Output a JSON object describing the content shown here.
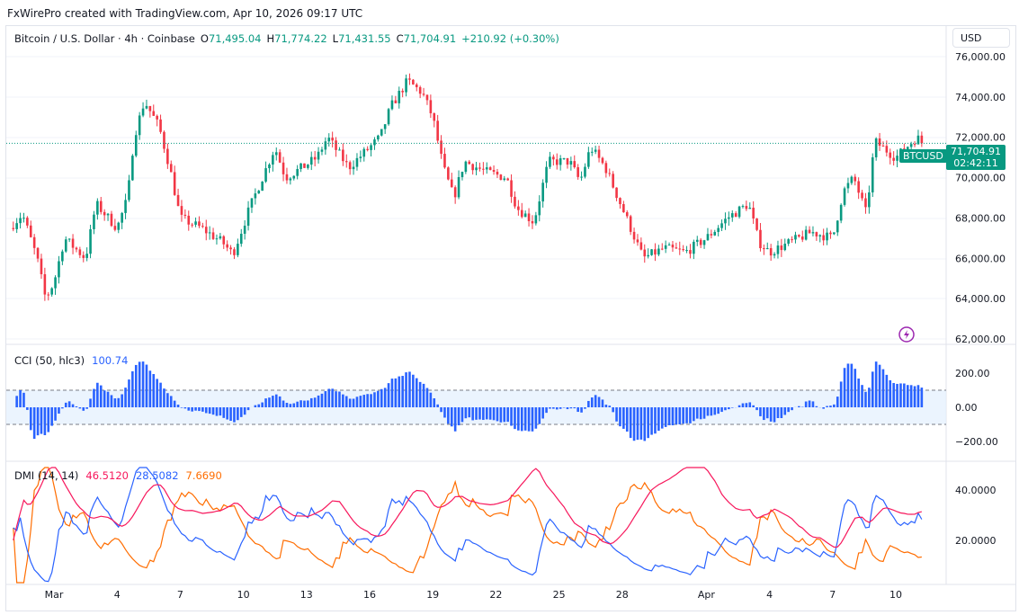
{
  "credit": "FxWirePro created with TradingView.com, Apr 10, 2026 09:17 UTC",
  "symbol": {
    "name": "Bitcoin / U.S. Dollar · 4h · Coinbase",
    "open": "O",
    "open_v": "71,495.04",
    "high": "H",
    "high_v": "71,774.22",
    "low": "L",
    "low_v": "71,431.55",
    "close": "C",
    "close_v": "71,704.91",
    "change": "+210.92 (+0.30%)"
  },
  "currency": "USD",
  "price_tag": {
    "symbol": "BTCUSD",
    "price": "71,704.91",
    "countdown": "02:42:11"
  },
  "price_axis": [
    "76,000.00",
    "74,000.00",
    "72,000.00",
    "70,000.00",
    "68,000.00",
    "66,000.00",
    "64,000.00",
    "62,000.00"
  ],
  "cci": {
    "label": "CCI (50, hlc3)",
    "value": "100.74",
    "axis": [
      "200.00",
      "0.00",
      "−200.00"
    ]
  },
  "dmi": {
    "label": "DMI (14, 14)",
    "adx": "46.5120",
    "plus": "28.5082",
    "minus": "7.6690",
    "axis": [
      "40.0000",
      "20.0000"
    ]
  },
  "time_axis": [
    "Mar",
    "4",
    "7",
    "10",
    "13",
    "16",
    "19",
    "22",
    "25",
    "28",
    "Apr",
    "4",
    "7",
    "10"
  ],
  "colors": {
    "up": "#089981",
    "down": "#f23645",
    "cci": "#2962ff",
    "adx": "#f7175c",
    "plus": "#2962ff",
    "minus": "#ff6d00"
  },
  "chart_data": {
    "type": "candlestick",
    "interval": "4h",
    "x_unit": "days since Mar 1",
    "path": [
      [
        -2.1,
        67500
      ],
      [
        -1.5,
        68200
      ],
      [
        -0.8,
        66000
      ],
      [
        -0.4,
        64000
      ],
      [
        0,
        64800
      ],
      [
        0.5,
        67000
      ],
      [
        1.5,
        66000
      ],
      [
        2,
        68700
      ],
      [
        3,
        67500
      ],
      [
        3.5,
        69000
      ],
      [
        3.8,
        72000
      ],
      [
        4.3,
        73800
      ],
      [
        5,
        72500
      ],
      [
        5.5,
        70500
      ],
      [
        6,
        68000
      ],
      [
        7,
        67500
      ],
      [
        8,
        66800
      ],
      [
        8.5,
        66200
      ],
      [
        9.3,
        68500
      ],
      [
        10.5,
        71500
      ],
      [
        11,
        70000
      ],
      [
        11.8,
        70500
      ],
      [
        12.5,
        71000
      ],
      [
        13,
        72000
      ],
      [
        14,
        70500
      ],
      [
        14.5,
        71000
      ],
      [
        15.5,
        72000
      ],
      [
        16,
        73500
      ],
      [
        16.8,
        74800
      ],
      [
        17.5,
        74200
      ],
      [
        18,
        73000
      ],
      [
        18.5,
        70500
      ],
      [
        19,
        69000
      ],
      [
        19.5,
        70800
      ],
      [
        20.5,
        70300
      ],
      [
        21.5,
        70000
      ],
      [
        22,
        68500
      ],
      [
        22.8,
        67800
      ],
      [
        23.5,
        70800
      ],
      [
        24.5,
        70800
      ],
      [
        25,
        69800
      ],
      [
        25.5,
        71500
      ],
      [
        26.2,
        70500
      ],
      [
        27,
        68500
      ],
      [
        28,
        66000
      ],
      [
        29,
        66500
      ],
      [
        30,
        66300
      ],
      [
        31,
        67000
      ],
      [
        32,
        68000
      ],
      [
        33,
        68700
      ],
      [
        33.5,
        66800
      ],
      [
        34,
        66300
      ],
      [
        35,
        66800
      ],
      [
        36,
        67300
      ],
      [
        37,
        67000
      ],
      [
        37.5,
        69300
      ],
      [
        38,
        70000
      ],
      [
        38.6,
        68200
      ],
      [
        39,
        71800
      ],
      [
        40,
        71000
      ],
      [
        40.5,
        71500
      ],
      [
        41,
        72000
      ],
      [
        41.3,
        71705
      ]
    ],
    "price_range": [
      62000,
      76500
    ]
  }
}
